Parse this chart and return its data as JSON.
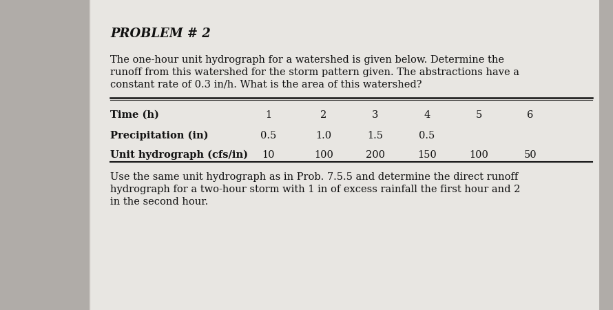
{
  "title": "PROBLEM # 2",
  "paragraph1_lines": [
    "The one-hour unit hydrograph for a watershed is given below. Determine the",
    "runoff from this watershed for the storm pattern given. The abstractions have a",
    "constant rate of 0.3 in/h. What is the area of this watershed?"
  ],
  "table_headers": [
    "Time (h)",
    "1",
    "2",
    "3",
    "4",
    "5",
    "6"
  ],
  "table_row1_label": "Precipitation (in)",
  "table_row1_values": [
    "0.5",
    "1.0",
    "1.5",
    "0.5",
    "",
    ""
  ],
  "table_row2_label": "Unit hydrograph (cfs/in)",
  "table_row2_values": [
    "10",
    "100",
    "200",
    "150",
    "100",
    "50"
  ],
  "paragraph2_lines": [
    "Use the same unit hydrograph as in Prob. 7.5.5 and determine the direct runoff",
    "hydrograph for a two-hour storm with 1 in of excess rainfall the first hour and 2",
    "in the second hour."
  ],
  "bg_color": "#e8e6e2",
  "card_color": "#e8e6e2",
  "left_strip_color": "#b0aca8",
  "text_color": "#111111",
  "line_color": "#111111"
}
